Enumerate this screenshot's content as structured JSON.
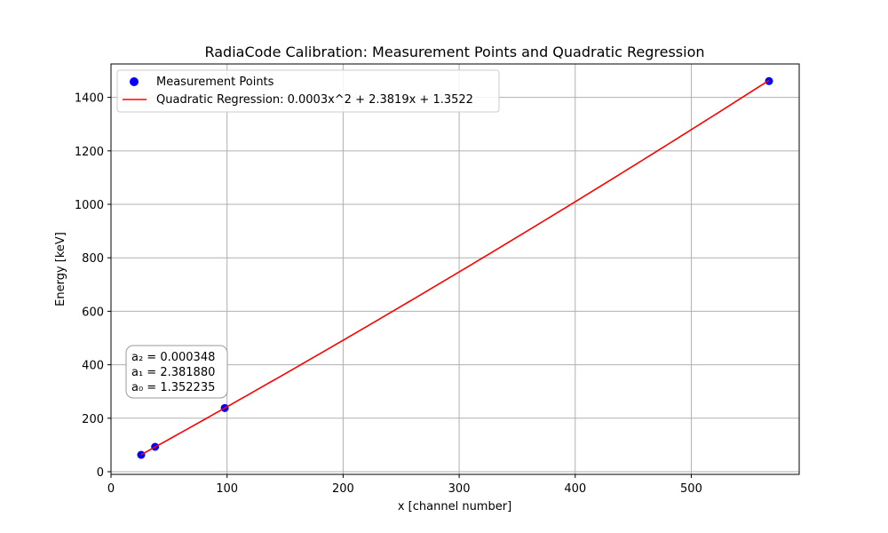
{
  "chart_data": {
    "type": "scatter",
    "title": "RadiaCode Calibration: Measurement Points and Quadratic Regression",
    "xlabel": "x [channel number]",
    "ylabel": "Energy [keV]",
    "xlim": [
      0,
      593
    ],
    "ylim": [
      -10,
      1525
    ],
    "xticks": [
      0,
      100,
      200,
      300,
      400,
      500
    ],
    "yticks": [
      0,
      200,
      400,
      600,
      800,
      1000,
      1200,
      1400
    ],
    "grid": true,
    "legend_position": "top-left",
    "series": [
      {
        "name": "Measurement Points",
        "kind": "scatter",
        "color": "#0000ff",
        "points": [
          {
            "x": 26,
            "y": 63
          },
          {
            "x": 38,
            "y": 93
          },
          {
            "x": 98,
            "y": 238
          },
          {
            "x": 567,
            "y": 1461
          }
        ]
      },
      {
        "name": "Quadratic Regression: 0.0003x^2 + 2.3819x + 1.3522",
        "kind": "line",
        "color": "#ff0000",
        "coefficients": {
          "a2": 0.000348,
          "a1": 2.38188,
          "a0": 1.352235
        },
        "x_range": [
          26,
          567
        ]
      }
    ],
    "annotation": {
      "lines": [
        "a₂ = 0.000348",
        "a₁ = 2.381880",
        "a₀ = 1.352235"
      ]
    }
  }
}
